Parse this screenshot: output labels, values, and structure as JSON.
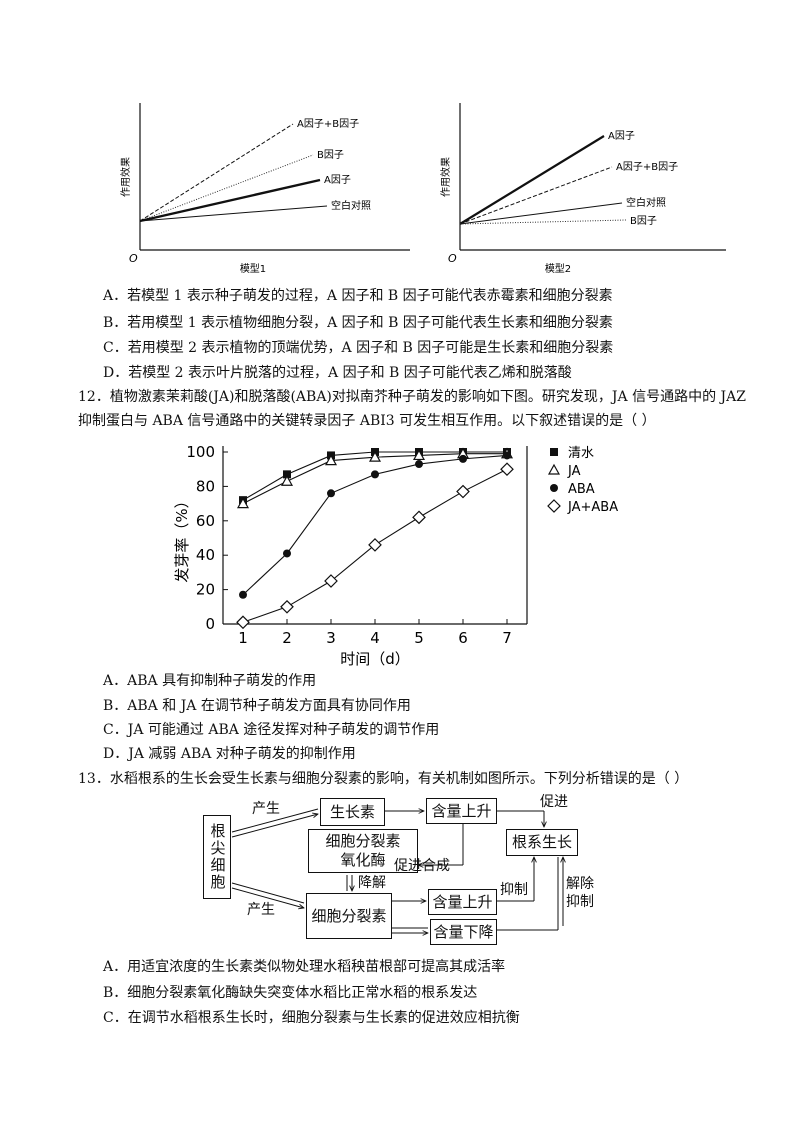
{
  "model_charts": {
    "model1": {
      "ylabel": "作用效果",
      "xlabel": "模型1",
      "origin": "O",
      "lines": [
        "A因子+B因子",
        "B因子",
        "A因子",
        "空白对照"
      ]
    },
    "model2": {
      "ylabel": "作用效果",
      "xlabel": "模型2",
      "origin": "O",
      "lines": [
        "A因子",
        "A因子+B因子",
        "空白对照",
        "B因子"
      ]
    }
  },
  "q11_options": [
    "A．若模型 1 表示种子萌发的过程，A 因子和 B 因子可能代表赤霉素和细胞分裂素",
    "B．若用模型 1 表示植物细胞分裂，A 因子和 B 因子可能代表生长素和细胞分裂素",
    "C．若用模型 2 表示植物的顶端优势，A 因子和 B 因子可能是生长素和细胞分裂素",
    "D．若模型 2 表示叶片脱落的过程，A 因子和 B 因子可能代表乙烯和脱落酸"
  ],
  "q12": {
    "line1": "12．植物激素茉莉酸(JA)和脱落酸(ABA)对拟南芥种子萌发的影响如下图。研究发现，JA 信号通路中的 JAZ",
    "line2": "抑制蛋白与 ABA 信号通路中的关键转录因子 ABI3 可发生相互作用。以下叙述错误的是（          ）",
    "options": [
      "A．ABA 具有抑制种子萌发的作用",
      "B．ABA 和 JA 在调节种子萌发方面具有协同作用",
      "C．JA 可能通过 ABA 途径发挥对种子萌发的调节作用",
      "D．JA 减弱 ABA 对种子萌发的抑制作用"
    ]
  },
  "chart_data": {
    "type": "line",
    "xlabel": "时间（d）",
    "ylabel": "发芽率（%）",
    "x": [
      1,
      2,
      3,
      4,
      5,
      6,
      7
    ],
    "xlim": [
      1,
      7
    ],
    "ylim": [
      0,
      100
    ],
    "yticks": [
      0,
      20,
      40,
      60,
      80,
      100
    ],
    "series": [
      {
        "name": "清水",
        "marker": "square",
        "values": [
          72,
          87,
          98,
          100,
          100,
          100,
          100
        ]
      },
      {
        "name": "JA",
        "marker": "triangle",
        "values": [
          70,
          83,
          95,
          97,
          98,
          99,
          99
        ]
      },
      {
        "name": "ABA",
        "marker": "circle",
        "values": [
          17,
          41,
          76,
          87,
          93,
          96,
          98
        ]
      },
      {
        "name": "JA+ABA",
        "marker": "diamond",
        "values": [
          1,
          10,
          25,
          46,
          62,
          77,
          90
        ]
      }
    ],
    "legend_placement": "right"
  },
  "q13": {
    "stem": "13．水稻根系的生长会受生长素与细胞分裂素的影响，有关机制如图所示。下列分析错误的是（        ）",
    "flowchart": {
      "root_cell": "根尖细胞",
      "auxin": "生长素",
      "content_up_1": "含量上升",
      "root_growth": "根系生长",
      "ckx": "细胞分裂素氧化酶",
      "cytokinin": "细胞分裂素",
      "content_up_2": "含量上升",
      "content_down": "含量下降",
      "produce_1": "产生",
      "produce_2": "产生",
      "degrade": "降解",
      "promote_synth": "促进合成",
      "promote": "促进",
      "inhibit": "抑制",
      "relieve_inhibit": "解除抑制"
    },
    "options": [
      "A．用适宜浓度的生长素类似物处理水稻秧苗根部可提高其成活率",
      "B．细胞分裂素氧化酶缺失突变体水稻比正常水稻的根系发达",
      "C．在调节水稻根系生长时，细胞分裂素与生长素的促进效应相抗衡"
    ]
  }
}
